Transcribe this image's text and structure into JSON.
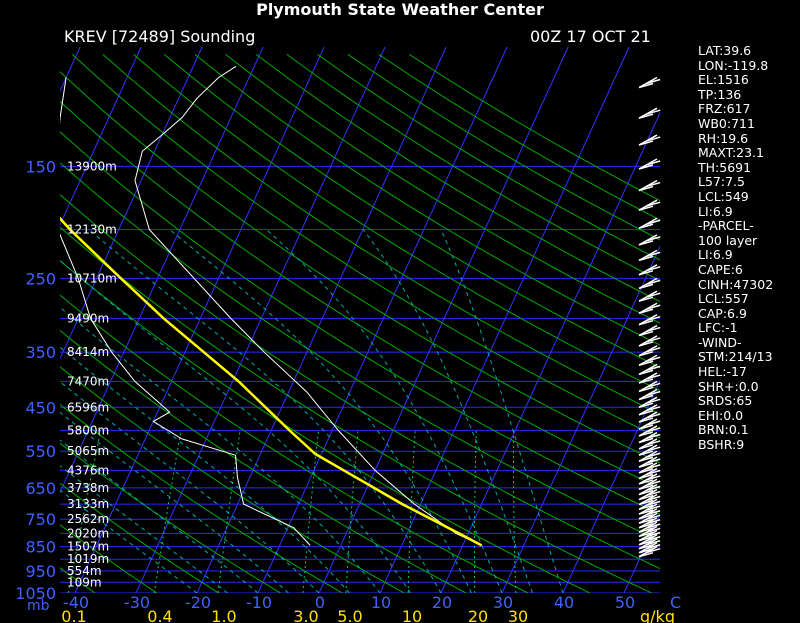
{
  "title": "Plymouth State Weather Center",
  "station": "KREV [72489] Sounding",
  "datetime": "00Z 17 OCT 21",
  "stats": [
    "LAT:39.6",
    "LON:-119.8",
    "EL:1516",
    "TP:136",
    "FRZ:617",
    "WB0:711",
    "RH:19.6",
    "MAXT:23.1",
    "TH:5691",
    "L57:7.5",
    "LCL:549",
    "LI:6.9",
    "-PARCEL-",
    "100 layer",
    "LI:6.9",
    "CAPE:6",
    "CINH:47302",
    "LCL:557",
    "CAP:6.9",
    "LFC:-1",
    "-WIND-",
    "STM:214/13",
    "HEL:-17",
    "SHR+:0.0",
    "SRDS:65",
    "EHI:0.0",
    "BRN:0.1",
    "BSHR:9"
  ],
  "chart_data": {
    "type": "skew-t",
    "pressure_unit": "mb",
    "temperature_unit": "C",
    "mixing_ratio_unit": "g/kg",
    "pressure_levels": [
      {
        "p": 150,
        "label": "150",
        "height": "13900m"
      },
      {
        "p": 200,
        "label": "",
        "height": "12130m"
      },
      {
        "p": 250,
        "label": "250",
        "height": "10710m"
      },
      {
        "p": 300,
        "label": "",
        "height": "9490m"
      },
      {
        "p": 350,
        "label": "350",
        "height": "8414m"
      },
      {
        "p": 400,
        "label": "",
        "height": "7470m"
      },
      {
        "p": 450,
        "label": "450",
        "height": "6596m"
      },
      {
        "p": 500,
        "label": "",
        "height": "5800m"
      },
      {
        "p": 550,
        "label": "550",
        "height": "5065m"
      },
      {
        "p": 600,
        "label": "",
        "height": "4376m"
      },
      {
        "p": 650,
        "label": "650",
        "height": "3738m"
      },
      {
        "p": 700,
        "label": "",
        "height": "3133m"
      },
      {
        "p": 750,
        "label": "750",
        "height": "2562m"
      },
      {
        "p": 800,
        "label": "",
        "height": "2020m"
      },
      {
        "p": 850,
        "label": "850",
        "height": "1507m"
      },
      {
        "p": 900,
        "label": "",
        "height": "1019m"
      },
      {
        "p": 950,
        "label": "950",
        "height": "554m"
      },
      {
        "p": 1000,
        "label": "",
        "height": "109m"
      },
      {
        "p": 1050,
        "label": "1050",
        "height": ""
      }
    ],
    "temperature_ticks": [
      "-40",
      "-30",
      "-20",
      "-10",
      "0",
      "10",
      "20",
      "30",
      "40",
      "50"
    ],
    "mixing_ratio_ticks": [
      "0.1",
      "0.4",
      "1.0",
      "3.0",
      "5.0",
      "10",
      "20",
      "30"
    ],
    "temperature_profile": [
      {
        "p": 845,
        "t": 23.1
      },
      {
        "p": 800,
        "t": 18
      },
      {
        "p": 700,
        "t": 9
      },
      {
        "p": 600,
        "t": 0
      },
      {
        "p": 500,
        "t": -9
      },
      {
        "p": 420,
        "t": -17
      },
      {
        "p": 350,
        "t": -27
      },
      {
        "p": 300,
        "t": -35
      },
      {
        "p": 250,
        "t": -44
      },
      {
        "p": 200,
        "t": -55
      },
      {
        "p": 160,
        "t": -61
      },
      {
        "p": 140,
        "t": -62
      },
      {
        "p": 130,
        "t": -60
      },
      {
        "p": 120,
        "t": -58
      },
      {
        "p": 110,
        "t": -57
      },
      {
        "p": 100,
        "t": -55
      },
      {
        "p": 95,
        "t": -53
      }
    ],
    "dewpoint_profile": [
      {
        "p": 845,
        "t": -5
      },
      {
        "p": 780,
        "t": -9
      },
      {
        "p": 700,
        "t": -19
      },
      {
        "p": 620,
        "t": -22
      },
      {
        "p": 560,
        "t": -24
      },
      {
        "p": 520,
        "t": -34
      },
      {
        "p": 480,
        "t": -40
      },
      {
        "p": 460,
        "t": -38
      },
      {
        "p": 400,
        "t": -46
      },
      {
        "p": 350,
        "t": -52
      },
      {
        "p": 300,
        "t": -58
      },
      {
        "p": 250,
        "t": -63
      },
      {
        "p": 200,
        "t": -70
      },
      {
        "p": 160,
        "t": -74
      },
      {
        "p": 140,
        "t": -76
      },
      {
        "p": 120,
        "t": -78
      },
      {
        "p": 100,
        "t": -80
      }
    ],
    "parcel_profile": [
      {
        "p": 845,
        "t": 23.1
      },
      {
        "p": 800,
        "t": 18.5
      },
      {
        "p": 700,
        "t": 7
      },
      {
        "p": 557,
        "t": -11
      },
      {
        "p": 500,
        "t": -17
      },
      {
        "p": 400,
        "t": -29
      },
      {
        "p": 300,
        "t": -46
      },
      {
        "p": 250,
        "t": -56
      },
      {
        "p": 200,
        "t": -68
      },
      {
        "p": 150,
        "t": -82
      },
      {
        "p": 120,
        "t": -91
      },
      {
        "p": 100,
        "t": -96
      }
    ],
    "parcel_line_color": "#ffff00",
    "profile_line_color": "#ffffff",
    "isobar_color": "#2828ff",
    "dry_adiabat_color": "#00aa00",
    "moist_adiabat_color": "#00aaaa",
    "isotherm_color": "#3333ff"
  }
}
